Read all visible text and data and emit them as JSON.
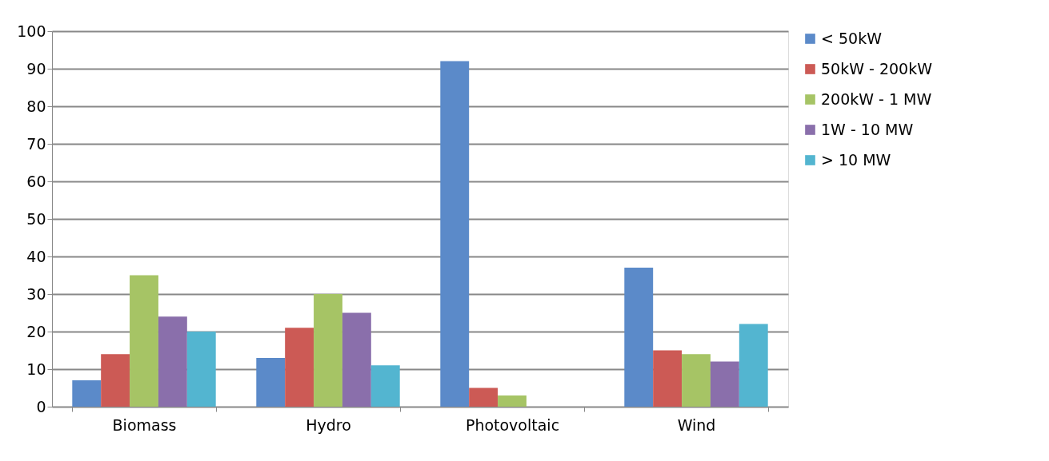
{
  "chart_data": {
    "type": "bar",
    "categories": [
      "Biomass",
      "Hydro",
      "Photovoltaic",
      "Wind"
    ],
    "series": [
      {
        "name": "< 50kW",
        "color": "#5b8ac9",
        "values": [
          7,
          13,
          92,
          37
        ]
      },
      {
        "name": "50kW - 200kW",
        "color": "#cc5a55",
        "values": [
          14,
          21,
          5,
          15
        ]
      },
      {
        "name": "200kW - 1 MW",
        "color": "#a6c465",
        "values": [
          35,
          30,
          3,
          14
        ]
      },
      {
        "name": "1W - 10 MW",
        "color": "#8a6fab",
        "values": [
          24,
          25,
          0,
          12
        ]
      },
      {
        "name": "> 10 MW",
        "color": "#53b5d0",
        "values": [
          20,
          11,
          0,
          22
        ]
      }
    ],
    "ylim": [
      0,
      100
    ],
    "yticks": [
      0,
      10,
      20,
      30,
      40,
      50,
      60,
      70,
      80,
      90,
      100
    ],
    "grid": "y",
    "legend": "right"
  }
}
